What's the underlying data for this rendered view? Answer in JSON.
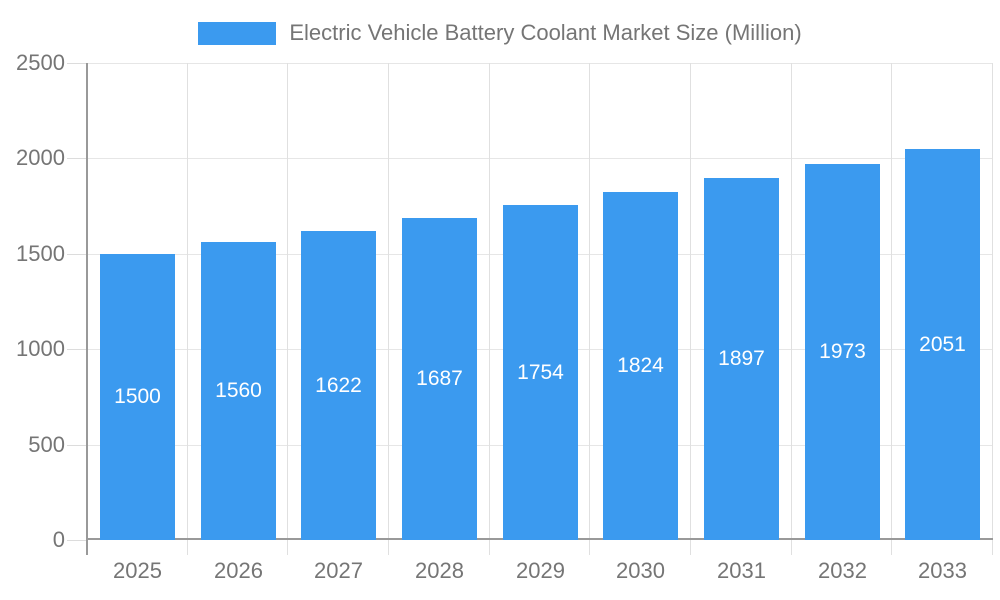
{
  "legend": {
    "label": "Electric Vehicle Battery Coolant Market Size (Million)"
  },
  "chart_data": {
    "type": "bar",
    "title": "Electric Vehicle Battery Coolant Market Size (Million)",
    "categories": [
      "2025",
      "2026",
      "2027",
      "2028",
      "2029",
      "2030",
      "2031",
      "2032",
      "2033"
    ],
    "values": [
      1500,
      1560,
      1622,
      1687,
      1754,
      1824,
      1897,
      1973,
      2051
    ],
    "xlabel": "",
    "ylabel": "",
    "ylim": [
      0,
      2500
    ],
    "yticks": [
      0,
      500,
      1000,
      1500,
      2000,
      2500
    ],
    "grid": true,
    "legend_position": "top-center",
    "bar_color": "#3B9AEF",
    "bar_label_color": "#ffffff",
    "axis_text_color": "#757575"
  }
}
